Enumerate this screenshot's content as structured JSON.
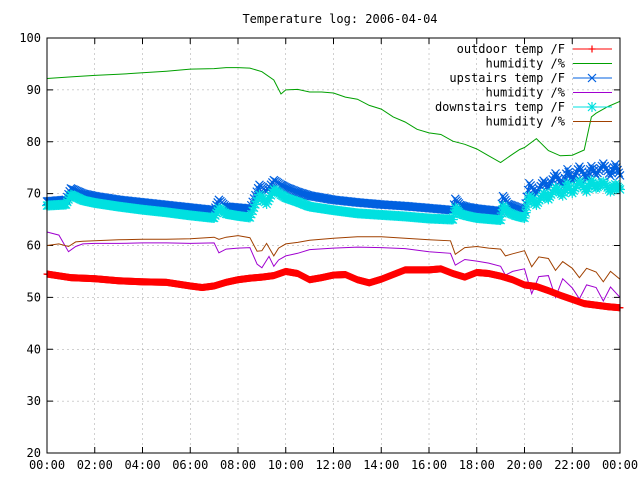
{
  "chart_data": {
    "type": "line",
    "title": "Temperature log: 2006-04-04",
    "xlabel": "",
    "ylabel": "",
    "xlim": [
      "00:00",
      "24:00"
    ],
    "ylim": [
      20,
      100
    ],
    "x_ticks": [
      "00:00",
      "02:00",
      "04:00",
      "06:00",
      "08:00",
      "10:00",
      "12:00",
      "14:00",
      "16:00",
      "18:00",
      "20:00",
      "22:00",
      "00:00"
    ],
    "y_ticks": [
      20,
      30,
      40,
      50,
      60,
      70,
      80,
      90,
      100
    ],
    "grid": true,
    "legend_position": "top-right",
    "x_unit": "hours",
    "series": [
      {
        "name": "outdoor temp /F",
        "color": "#ff0000",
        "marker": "plus",
        "x": [
          0,
          1,
          2,
          3,
          4,
          5,
          6,
          6.5,
          7,
          7.5,
          8,
          8.5,
          9,
          9.5,
          10,
          10.5,
          11,
          11.5,
          12,
          12.5,
          13,
          13.5,
          14,
          14.5,
          15,
          15.5,
          16,
          16.5,
          17,
          17.5,
          18,
          18.5,
          19,
          19.5,
          20,
          20.5,
          21,
          21.5,
          22,
          22.5,
          23,
          23.5,
          24
        ],
        "y": [
          54.5,
          53.8,
          53.6,
          53.2,
          53.0,
          52.9,
          52.2,
          51.9,
          52.2,
          52.9,
          53.4,
          53.7,
          53.9,
          54.2,
          55.0,
          54.6,
          53.4,
          53.8,
          54.3,
          54.4,
          53.4,
          52.8,
          53.5,
          54.4,
          55.3,
          55.3,
          55.3,
          55.5,
          54.6,
          53.9,
          54.8,
          54.6,
          54.1,
          53.4,
          52.4,
          52.1,
          51.3,
          50.4,
          49.6,
          48.8,
          48.5,
          48.2,
          48.0
        ]
      },
      {
        "name": "humidity /%",
        "color": "#00a000",
        "marker": "none",
        "x": [
          0,
          1,
          2,
          3,
          4,
          5,
          6,
          7,
          7.5,
          8,
          8.5,
          9,
          9.5,
          9.8,
          10,
          10.5,
          11,
          11.5,
          12,
          12.5,
          13,
          13.5,
          14,
          14.5,
          15,
          15.5,
          16,
          16.5,
          17,
          17.5,
          18,
          18.5,
          19,
          19.5,
          19.8,
          20,
          20.5,
          21,
          21.5,
          22,
          22.5,
          22.8,
          23,
          23.5,
          24
        ],
        "y": [
          92.2,
          92.5,
          92.8,
          93.0,
          93.3,
          93.6,
          94.0,
          94.1,
          94.3,
          94.3,
          94.2,
          93.5,
          91.9,
          89.2,
          90.0,
          90.1,
          89.6,
          89.6,
          89.4,
          88.6,
          88.2,
          87.0,
          86.3,
          84.8,
          83.8,
          82.4,
          81.7,
          81.4,
          80.1,
          79.5,
          78.6,
          77.3,
          76.0,
          77.6,
          78.5,
          78.9,
          80.6,
          78.3,
          77.3,
          77.4,
          78.4,
          84.8,
          85.5,
          86.8,
          87.8
        ]
      },
      {
        "name": "upstairs temp /F",
        "color": "#0060e0",
        "marker": "cross",
        "x": [
          0,
          0.8,
          1.0,
          1.5,
          2,
          3,
          4,
          5,
          6,
          7,
          7.2,
          7.5,
          8,
          8.5,
          8.9,
          9.2,
          9.5,
          9.8,
          10,
          10.5,
          11,
          12,
          13,
          14,
          15,
          16,
          17,
          17.1,
          17.3,
          17.6,
          18,
          19,
          19.1,
          19.3,
          19.6,
          20,
          20.2,
          20.5,
          20.8,
          21,
          21.3,
          21.6,
          21.8,
          22,
          22.3,
          22.6,
          22.8,
          23,
          23.3,
          23.6,
          23.8,
          24
        ],
        "y": [
          68.5,
          68.8,
          71.0,
          70.0,
          69.5,
          68.8,
          68.3,
          67.8,
          67.3,
          66.8,
          68.8,
          67.5,
          67.3,
          67.1,
          71.7,
          70.4,
          72.6,
          71.7,
          71.2,
          70.3,
          69.6,
          68.8,
          68.3,
          67.9,
          67.6,
          67.2,
          66.8,
          69.0,
          67.8,
          67.4,
          67.1,
          66.6,
          69.5,
          68.0,
          67.5,
          66.8,
          72.0,
          69.9,
          72.5,
          71.0,
          73.9,
          71.3,
          74.7,
          72.5,
          75.2,
          72.8,
          75.3,
          73.5,
          75.8,
          73.4,
          75.6,
          73.5
        ]
      },
      {
        "name": "humidity /%",
        "color": "#a000d0",
        "marker": "none",
        "x": [
          0,
          0.5,
          0.9,
          1.2,
          1.5,
          2,
          3,
          4,
          5,
          6,
          7,
          7.2,
          7.5,
          8,
          8.5,
          8.8,
          9.0,
          9.3,
          9.5,
          9.7,
          10,
          10.5,
          11,
          12,
          13,
          14,
          15,
          16,
          16.9,
          17.1,
          17.5,
          18,
          18.5,
          19,
          19.2,
          19.5,
          20,
          20.3,
          20.6,
          21,
          21.3,
          21.6,
          22,
          22.3,
          22.6,
          23,
          23.3,
          23.6,
          24
        ],
        "y": [
          62.6,
          62.0,
          58.8,
          59.8,
          60.3,
          60.4,
          60.4,
          60.5,
          60.5,
          60.4,
          60.5,
          58.6,
          59.3,
          59.5,
          59.6,
          56.4,
          55.7,
          57.9,
          56.0,
          57.2,
          58.0,
          58.5,
          59.2,
          59.5,
          59.7,
          59.6,
          59.4,
          58.8,
          58.5,
          56.2,
          57.3,
          57.0,
          56.6,
          56.0,
          54.3,
          55.0,
          55.5,
          50.7,
          54.0,
          54.2,
          50.0,
          53.6,
          51.8,
          49.7,
          52.4,
          51.9,
          49.3,
          52.0,
          50.0
        ]
      },
      {
        "name": "downstairs temp /F",
        "color": "#00e0e0",
        "marker": "star",
        "x": [
          0,
          0.8,
          1.0,
          1.5,
          2,
          3,
          4,
          5,
          6,
          7,
          7.2,
          7.5,
          8,
          8.5,
          8.9,
          9.2,
          9.5,
          9.8,
          10,
          10.5,
          11,
          12,
          13,
          14,
          15,
          16,
          17,
          17.1,
          17.3,
          17.6,
          18,
          19,
          19.1,
          19.3,
          19.6,
          20,
          20.2,
          20.5,
          20.8,
          21,
          21.3,
          21.6,
          21.8,
          22,
          22.3,
          22.6,
          22.8,
          23,
          23.3,
          23.6,
          23.8,
          24
        ],
        "y": [
          67.7,
          67.9,
          69.8,
          68.7,
          68.2,
          67.5,
          66.9,
          66.4,
          65.8,
          65.3,
          67.2,
          66.1,
          65.7,
          65.4,
          69.8,
          68.0,
          70.8,
          69.8,
          69.2,
          68.4,
          67.5,
          66.8,
          66.2,
          65.9,
          65.6,
          65.2,
          65.0,
          67.3,
          66.1,
          65.7,
          65.3,
          64.9,
          67.6,
          66.4,
          65.8,
          65.3,
          69.5,
          67.8,
          70.1,
          68.9,
          71.2,
          69.6,
          72.0,
          70.1,
          72.4,
          70.4,
          72.5,
          71.0,
          72.3,
          70.4,
          71.8,
          70.8
        ]
      },
      {
        "name": "humidity /%",
        "color": "#a04000",
        "marker": "none",
        "x": [
          0,
          0.5,
          0.9,
          1.2,
          1.5,
          2,
          3,
          4,
          5,
          6,
          7,
          7.2,
          7.5,
          8,
          8.5,
          8.8,
          9.0,
          9.2,
          9.5,
          9.7,
          10,
          10.5,
          11,
          12,
          13,
          14,
          15,
          16,
          16.9,
          17.1,
          17.5,
          18,
          18.5,
          19,
          19.2,
          19.5,
          20,
          20.3,
          20.6,
          21,
          21.3,
          21.6,
          22,
          22.3,
          22.6,
          23,
          23.3,
          23.6,
          24
        ],
        "y": [
          60.0,
          60.3,
          59.8,
          60.7,
          60.8,
          60.9,
          61.1,
          61.2,
          61.2,
          61.3,
          61.6,
          61.2,
          61.6,
          61.9,
          61.5,
          58.9,
          59.0,
          60.4,
          58.0,
          59.5,
          60.3,
          60.6,
          61.0,
          61.4,
          61.7,
          61.7,
          61.4,
          61.1,
          60.9,
          58.3,
          59.6,
          59.8,
          59.5,
          59.3,
          58.0,
          58.4,
          59.0,
          55.9,
          57.8,
          57.5,
          55.2,
          56.9,
          55.6,
          53.8,
          55.6,
          54.9,
          53.0,
          55.0,
          53.5
        ]
      }
    ]
  }
}
